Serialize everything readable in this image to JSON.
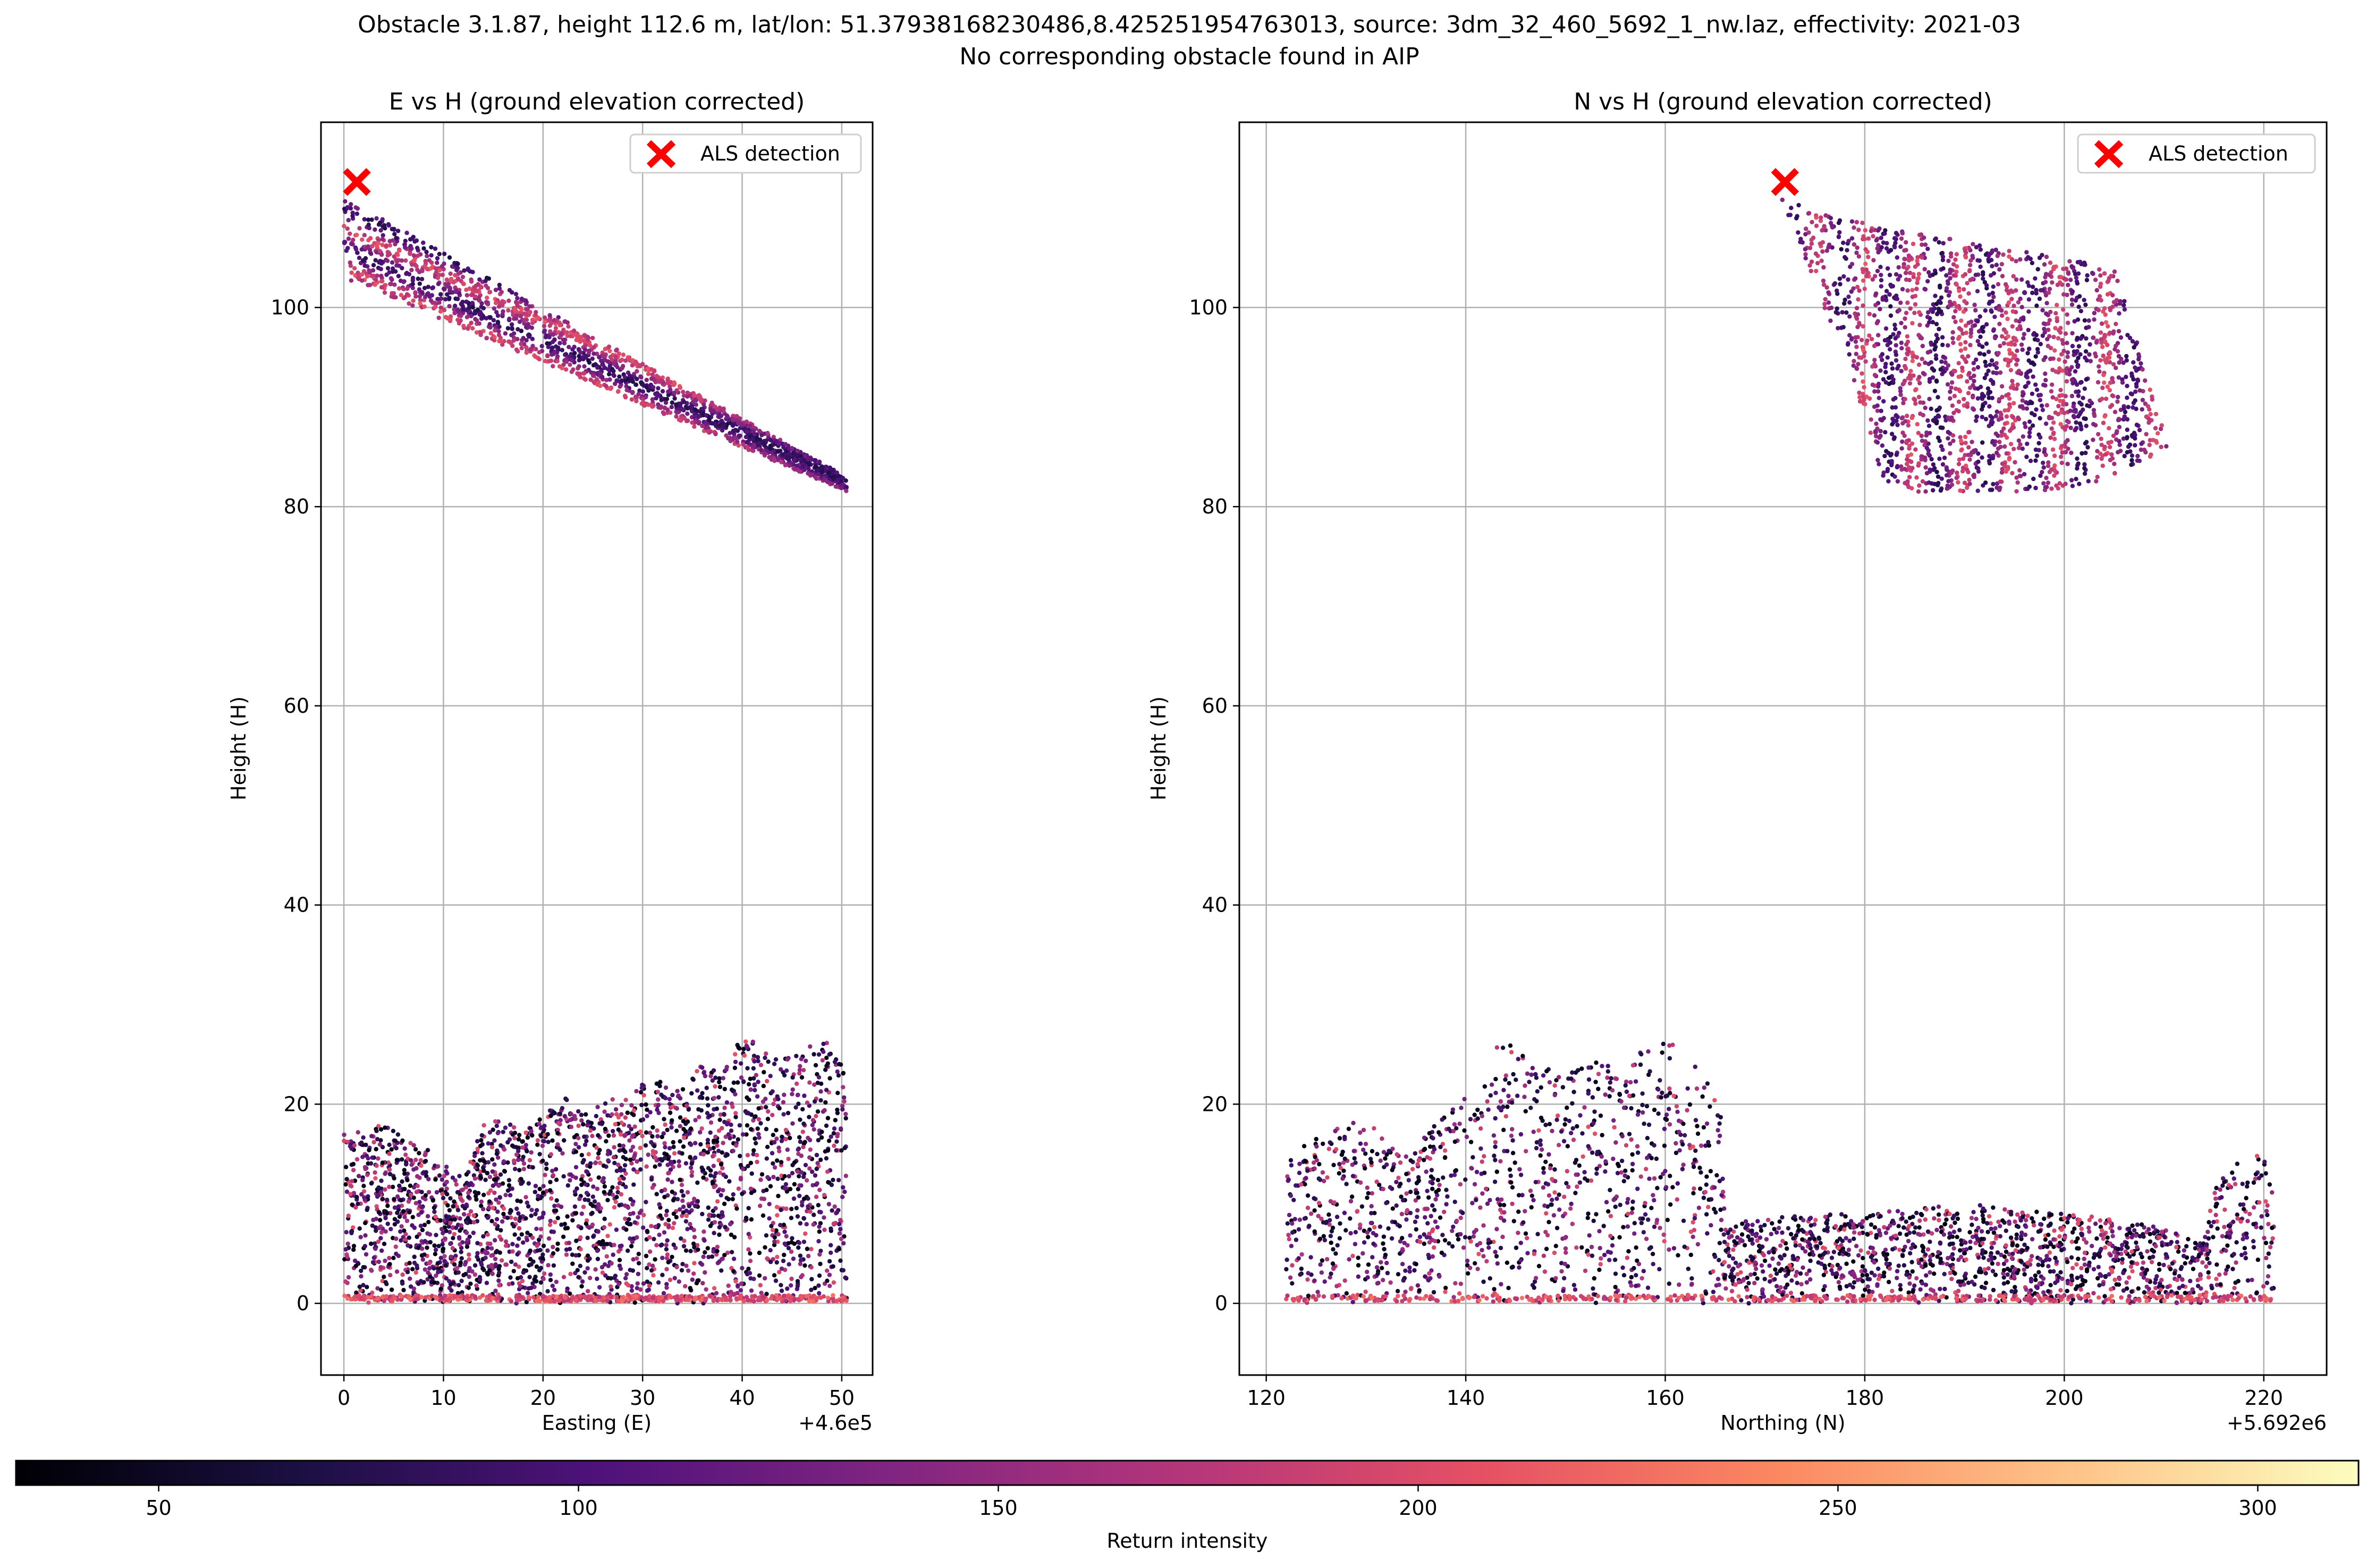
{
  "figure": {
    "title_line1": "Obstacle 3.1.87, height 112.6 m, lat/lon: 51.37938168230486,8.425251954763013, source: 3dm_32_460_5692_1_nw.laz, effectivity: 2021-03",
    "title_line2": "No corresponding obstacle found in AIP"
  },
  "chart_data": [
    {
      "type": "scatter",
      "title": "E vs H (ground elevation corrected)",
      "xlabel": "Easting (E)",
      "ylabel": "Height (H)",
      "x_offset_label": "+4.6e5",
      "xlim": [
        -2.3,
        53.1
      ],
      "ylim": [
        -7.2,
        118.6
      ],
      "xticks": [
        0,
        10,
        20,
        30,
        40,
        50
      ],
      "yticks": [
        0,
        20,
        40,
        60,
        80,
        100
      ],
      "grid": true,
      "legend": {
        "label": "ALS detection",
        "placement": "top-right"
      },
      "detection": {
        "x": 1.3,
        "y": 112.6
      },
      "roof_band": {
        "x": [
          0.0,
          50.5
        ],
        "y_top": [
          111.0,
          83.0
        ],
        "y_bottom": [
          103.0,
          81.5
        ]
      },
      "vegetation_profile": {
        "x": [
          0,
          2,
          4,
          6,
          8,
          10,
          12,
          14,
          16,
          18,
          20,
          22,
          24,
          26,
          28,
          30,
          32,
          34,
          36,
          38,
          40,
          42,
          44,
          46,
          48,
          50,
          50.5
        ],
        "top": [
          17,
          17.5,
          18.5,
          17,
          16,
          14,
          12.5,
          18,
          18.5,
          17,
          19,
          21,
          19,
          20,
          21,
          22,
          22.5,
          21.5,
          24,
          23,
          27,
          26,
          25,
          25,
          27,
          25,
          20
        ]
      },
      "color_range": [
        33,
        312
      ]
    },
    {
      "type": "scatter",
      "title": "N vs H (ground elevation corrected)",
      "xlabel": "Northing (N)",
      "ylabel": "Height (H)",
      "x_offset_label": "+5.692e6",
      "xlim": [
        117.3,
        226.3
      ],
      "ylim": [
        -7.2,
        118.6
      ],
      "xticks": [
        120,
        140,
        160,
        180,
        200,
        220
      ],
      "yticks": [
        0,
        20,
        40,
        60,
        80,
        100
      ],
      "grid": true,
      "legend": {
        "label": "ALS detection",
        "placement": "top-right"
      },
      "detection": {
        "x": 172.0,
        "y": 112.6
      },
      "roof_polygon": [
        [
          171.5,
          111
        ],
        [
          177,
          109
        ],
        [
          205,
          104
        ],
        [
          210.5,
          86
        ],
        [
          205,
          83
        ],
        [
          199,
          81.5
        ],
        [
          185,
          81.5
        ],
        [
          182,
          82
        ],
        [
          178,
          95
        ]
      ],
      "vegetation_profile": {
        "x": [
          122,
          124,
          126,
          128,
          130,
          132,
          134,
          136,
          138,
          140,
          142,
          144,
          146,
          148,
          150,
          152,
          154,
          156,
          158,
          160,
          162,
          164,
          165.5,
          166,
          170,
          175,
          180,
          185,
          190,
          195,
          200,
          205,
          210,
          214,
          215,
          217,
          219,
          221
        ],
        "top": [
          14,
          16,
          17,
          18.5,
          18,
          17,
          15,
          17,
          19,
          21,
          24,
          27,
          25,
          24,
          23,
          25,
          24,
          23,
          26,
          27,
          25,
          23,
          21,
          8,
          8.5,
          9,
          9,
          9.5,
          10,
          9.5,
          9,
          8.5,
          7.5,
          6,
          12,
          14,
          15,
          14
        ]
      },
      "color_range": [
        33,
        312
      ]
    }
  ],
  "colorbar": {
    "label": "Return intensity",
    "ticks": [
      50,
      100,
      150,
      200,
      250,
      300
    ],
    "range": [
      33,
      312
    ],
    "colormap": "magma",
    "stops": [
      "#000004",
      "#1c1044",
      "#4f127b",
      "#812581",
      "#b5367a",
      "#e55064",
      "#fb8761",
      "#fec287",
      "#fcfdbf"
    ]
  },
  "colors": {
    "detection_marker": "#ff0000",
    "grid": "#b0b0b0",
    "axis": "#000000"
  }
}
